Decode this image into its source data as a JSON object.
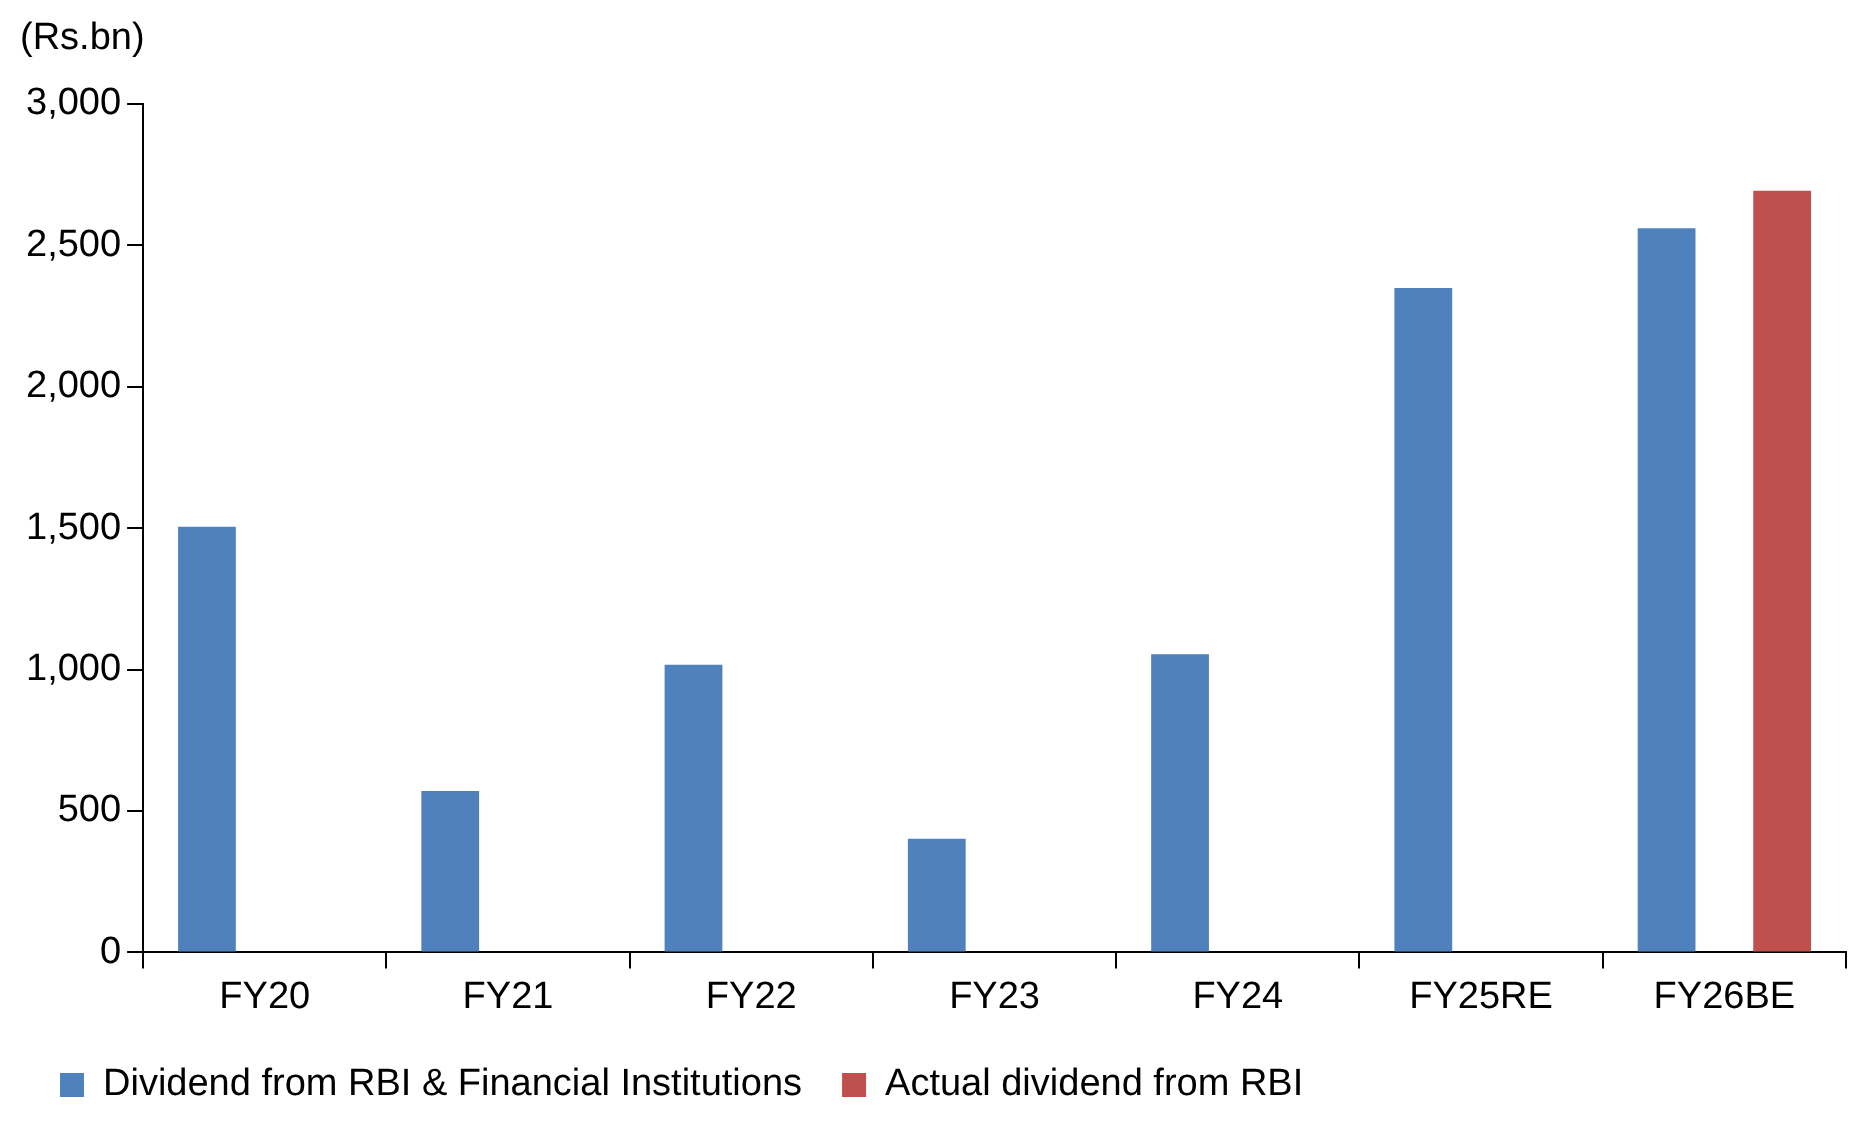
{
  "chart_data": {
    "type": "bar",
    "ylabel": "(Rs.bn)",
    "categories": [
      "FY20",
      "FY21",
      "FY22",
      "FY23",
      "FY24",
      "FY25RE",
      "FY26BE"
    ],
    "series": [
      {
        "name": "Dividend from RBI & Financial Institutions",
        "color": "#4f81bd",
        "values": [
          1505,
          571,
          1017,
          402,
          1054,
          2349,
          2561
        ]
      },
      {
        "name": "Actual dividend from RBI",
        "color": "#c0504d",
        "values": [
          null,
          null,
          null,
          null,
          null,
          null,
          2693
        ]
      }
    ],
    "ylim": [
      0,
      3000
    ],
    "yticks": [
      0,
      500,
      {
        "value": 1000,
        "label": "1,000"
      },
      {
        "value": 1500,
        "label": "1,500"
      },
      {
        "value": 2000,
        "label": "2,000"
      },
      {
        "value": 2500,
        "label": "2,500"
      },
      {
        "value": 3000,
        "label": "3,000"
      }
    ],
    "grid": false,
    "legend": "bottom"
  }
}
